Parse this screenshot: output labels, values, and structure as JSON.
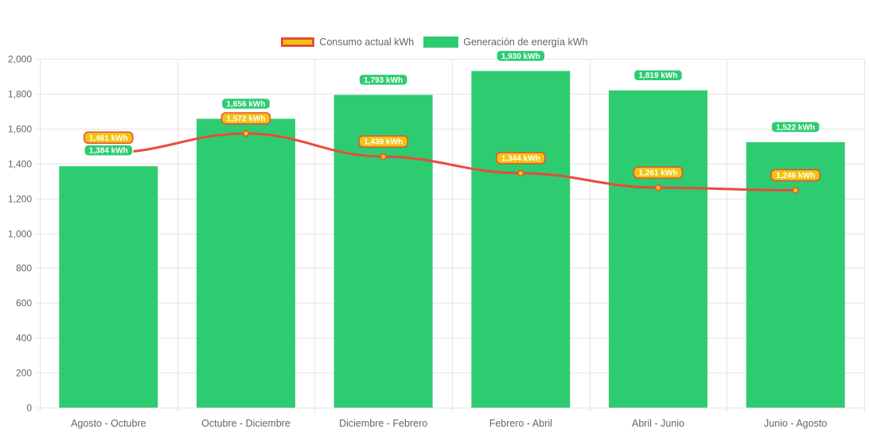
{
  "legend": {
    "line_label": "Consumo actual kWh",
    "bar_label": "Generación de energía kWh"
  },
  "colors": {
    "bar": "#2ecc71",
    "line": "#e74c3c",
    "point": "#f1c40f",
    "grid": "#e5e5e5",
    "axis_text": "#666666"
  },
  "chart_data": {
    "type": "bar",
    "title": "",
    "xlabel": "",
    "ylabel": "",
    "ylim": [
      0,
      2000
    ],
    "yticks": [
      "0",
      "200",
      "400",
      "600",
      "800",
      "1,000",
      "1,200",
      "1,400",
      "1,600",
      "1,800",
      "2,000"
    ],
    "categories": [
      "Agosto - Octubre",
      "Octubre - Diciembre",
      "Diciembre - Febrero",
      "Febrero - Abril",
      "Abril - Junio",
      "Junio - Agosto"
    ],
    "grid": true,
    "legend_position": "top-center",
    "series": [
      {
        "name": "Generación de energía kWh",
        "type": "bar",
        "values": [
          1384,
          1656,
          1793,
          1930,
          1819,
          1522
        ],
        "labels": [
          "1,384 kWh",
          "1,656 kWh",
          "1,793 kWh",
          "1,930 kWh",
          "1,819 kWh",
          "1,522 kWh"
        ]
      },
      {
        "name": "Consumo actual kWh",
        "type": "line",
        "values": [
          1461,
          1572,
          1439,
          1344,
          1261,
          1246
        ],
        "labels": [
          "1,461 kWh",
          "1,572 kWh",
          "1,439 kWh",
          "1,344 kWh",
          "1,261 kWh",
          "1,246 kWh"
        ]
      }
    ]
  }
}
